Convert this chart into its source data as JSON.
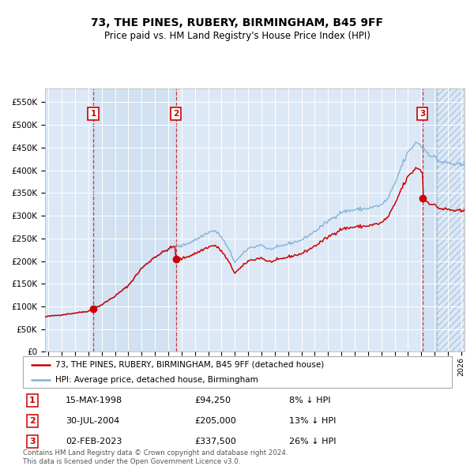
{
  "title": "73, THE PINES, RUBERY, BIRMINGHAM, B45 9FF",
  "subtitle": "Price paid vs. HM Land Registry's House Price Index (HPI)",
  "sale_label": "73, THE PINES, RUBERY, BIRMINGHAM, B45 9FF (detached house)",
  "hpi_label": "HPI: Average price, detached house, Birmingham",
  "sale_color": "#cc0000",
  "hpi_color": "#7fb0d8",
  "sale_dates": [
    1998.37,
    2004.57,
    2023.09
  ],
  "sale_prices": [
    94250,
    205000,
    337500
  ],
  "annotations": [
    {
      "num": 1,
      "date": "15-MAY-1998",
      "price": "£94,250",
      "hpi": "8% ↓ HPI"
    },
    {
      "num": 2,
      "date": "30-JUL-2004",
      "price": "£205,000",
      "hpi": "13% ↓ HPI"
    },
    {
      "num": 3,
      "date": "02-FEB-2023",
      "price": "£337,500",
      "hpi": "26% ↓ HPI"
    }
  ],
  "footer": "Contains HM Land Registry data © Crown copyright and database right 2024.\nThis data is licensed under the Open Government Licence v3.0.",
  "ylim": [
    0,
    580000
  ],
  "yticks": [
    0,
    50000,
    100000,
    150000,
    200000,
    250000,
    300000,
    350000,
    400000,
    450000,
    500000,
    550000
  ],
  "xlim_start": 1994.75,
  "xlim_end": 2026.25,
  "hatch_start": 2024.17,
  "bg_color": "#dce8f5"
}
